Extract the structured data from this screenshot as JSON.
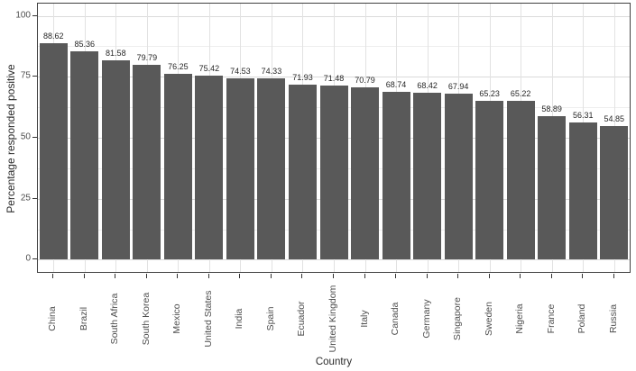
{
  "chart_data": {
    "type": "bar",
    "title": "",
    "xlabel": "Country",
    "ylabel": "Percentage responded positive",
    "categories": [
      "China",
      "Brazil",
      "South Africa",
      "South Korea",
      "Mexico",
      "United States",
      "India",
      "Spain",
      "Ecuador",
      "United Kingdom",
      "Italy",
      "Canada",
      "Germany",
      "Singapore",
      "Sweden",
      "Nigeria",
      "France",
      "Poland",
      "Russia"
    ],
    "values": [
      88.62,
      85.36,
      81.58,
      79.79,
      76.25,
      75.42,
      74.53,
      74.33,
      71.93,
      71.48,
      70.79,
      68.74,
      68.42,
      67.94,
      65.23,
      65.22,
      58.89,
      56.31,
      54.85
    ],
    "value_labels": [
      "88.62",
      "85.36",
      "81.58",
      "79.79",
      "76.25",
      "75.42",
      "74.53",
      "74.33",
      "71.93",
      "71.48",
      "70.79",
      "68.74",
      "68.42",
      "67.94",
      "65.23",
      "65.22",
      "58.89",
      "56.31",
      "54.85"
    ],
    "y_ticks": [
      0,
      25,
      50,
      75,
      100
    ],
    "y_minor_ticks": [
      12.5,
      37.5,
      62.5,
      87.5
    ],
    "ylim": [
      0,
      100
    ],
    "legend_position": "none",
    "grid": "horizontal major+minor, vertical major at category centers",
    "colors": {
      "bar_fill": "#595959",
      "panel_border": "#404040",
      "grid_major": "#dadada",
      "grid_minor": "#eeeeee",
      "grid_vertical": "#e2e2e2",
      "axis_text": "#4d4d4d",
      "axis_title": "#2b2b2b",
      "value_label": "#262626",
      "background": "#ffffff"
    }
  }
}
